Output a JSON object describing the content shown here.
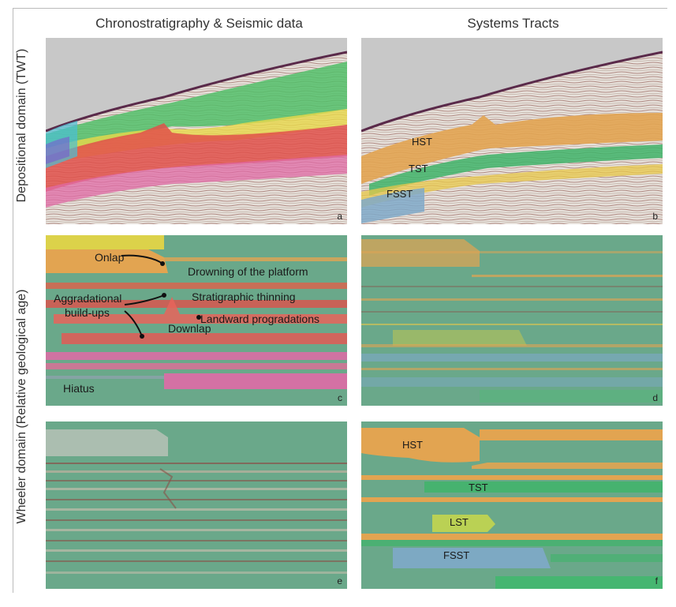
{
  "titles": {
    "col1": "Chronostratigraphy & Seismic data",
    "col2": "Systems Tracts",
    "row1": "Depositional domain (TWT)",
    "row2": "Wheeler domain (Relative geological age)"
  },
  "panel_labels": {
    "a": "a",
    "b": "b",
    "c": "c",
    "d": "d",
    "e": "e",
    "f": "f"
  },
  "annotations": {
    "onlap": "Onlap",
    "drowning": "Drowning of the platform",
    "aggradational": "Aggradational",
    "buildups": "build-ups",
    "thinning": "Stratigraphic thinning",
    "landward": "Landward progradations",
    "downlap": "Downlap",
    "hiatus": "Hiatus"
  },
  "tracts_b": {
    "hst": "HST",
    "tst": "TST",
    "fsst": "FSST"
  },
  "tracts_f": {
    "hst": "HST",
    "tst": "TST",
    "lst": "LST",
    "fsst": "FSST"
  },
  "colors": {
    "wheeler_green": "#6aa88a",
    "hst_orange": "#e2a451",
    "tst_green": "#3fb46a",
    "fsst_blue": "#7fa9c9",
    "red_layers": "#e0504a",
    "pink_layers": "#e06aa6",
    "sky_gray": "#c8c8c8"
  }
}
